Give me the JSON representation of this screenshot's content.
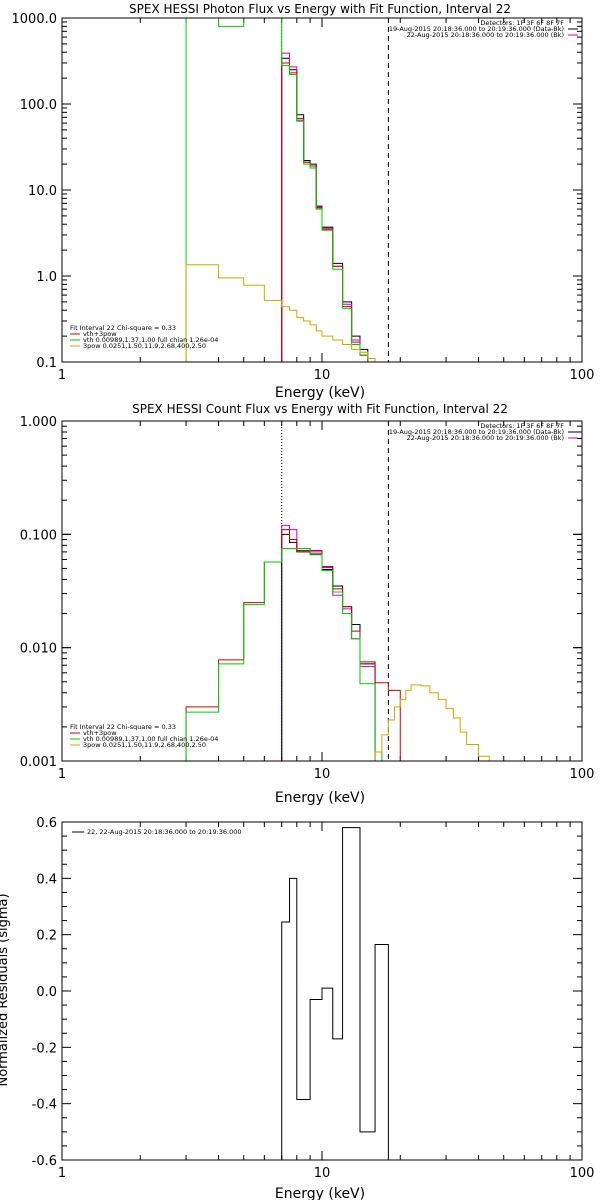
{
  "chart_data": [
    {
      "type": "line",
      "title": "SPEX HESSI Photon Flux vs Energy with Fit Function, Interval 22",
      "xlabel": "Energy (keV)",
      "ylabel": "",
      "xscale": "log",
      "yscale": "log",
      "xlim": [
        1,
        100
      ],
      "ylim": [
        0.1,
        1000
      ],
      "x_tick_labels": [
        "1",
        "10",
        "100"
      ],
      "y_tick_labels": [
        "0.1",
        "1.0",
        "10.0",
        "100.0",
        "1000.0"
      ],
      "top_legend": [
        "Detectors: 1F 3F 6F 8F 7F",
        "19-Aug-2015 20:18:36.000 to 20:19:36.000 (Data-Bk)",
        "22-Aug-2015 20:18:36.000 to 20:19:36.000 (Bk)"
      ],
      "top_legend_colors": [
        "#000000",
        "#000000",
        "#cc00cc"
      ],
      "fit_legend_header": "Fit Interval 22   Chi-square = 0.33",
      "fit_legend": [
        {
          "label": "vth+3pow",
          "color": "#cc0000"
        },
        {
          "label": "vth 0.00989,1.37,1.00  full chian 1.26e-04",
          "color": "#00cc00"
        },
        {
          "label": "3pow 0.0251,1.50,11.9,2.68,400,2.50",
          "color": "#ccaa00"
        }
      ],
      "vlines": [
        {
          "x": 7.0,
          "style": "dotted",
          "color": "#cc00cc"
        },
        {
          "x": 18.0,
          "style": "dashed",
          "color": "#000000"
        }
      ],
      "series": [
        {
          "color": "#000000",
          "steps": [
            [
              7.0,
              7.5,
              340
            ],
            [
              7.5,
              8.0,
              250
            ],
            [
              8.0,
              8.5,
              75
            ],
            [
              8.5,
              9.0,
              22
            ],
            [
              9.0,
              9.5,
              20
            ],
            [
              9.5,
              10.0,
              6.5
            ],
            [
              10.0,
              11.0,
              3.7
            ],
            [
              11.0,
              12.0,
              1.4
            ],
            [
              12.0,
              13.0,
              0.5
            ],
            [
              13.0,
              14.0,
              0.2
            ],
            [
              14.0,
              15.0,
              0.14
            ]
          ]
        },
        {
          "color": "#cc00cc",
          "steps": [
            [
              7.0,
              7.5,
              390
            ],
            [
              7.5,
              8.0,
              270
            ],
            [
              8.0,
              8.5,
              65
            ],
            [
              8.5,
              9.0,
              21
            ],
            [
              9.0,
              9.5,
              19
            ],
            [
              9.5,
              10.0,
              6.3
            ],
            [
              10.0,
              11.0,
              3.6
            ],
            [
              11.0,
              12.0,
              1.3
            ],
            [
              12.0,
              13.0,
              0.47
            ],
            [
              13.0,
              14.0,
              0.18
            ],
            [
              14.0,
              15.0,
              0.12
            ]
          ]
        },
        {
          "color": "#cc0000",
          "steps": [
            [
              7.0,
              7.5,
              300
            ],
            [
              7.5,
              8.0,
              230
            ],
            [
              8.0,
              8.5,
              68
            ],
            [
              8.5,
              9.0,
              21
            ],
            [
              9.0,
              9.5,
              19
            ],
            [
              9.5,
              10.0,
              6.2
            ],
            [
              10.0,
              11.0,
              3.5
            ],
            [
              11.0,
              12.0,
              1.3
            ],
            [
              12.0,
              13.0,
              0.44
            ],
            [
              13.0,
              14.0,
              0.17
            ],
            [
              14.0,
              15.0,
              0.12
            ]
          ]
        },
        {
          "color": "#00cc00",
          "steps": [
            [
              3.0,
              4.0,
              1000
            ],
            [
              4.0,
              5.0,
              800
            ],
            [
              5.0,
              6.0,
              1000
            ],
            [
              6.0,
              7.0,
              1000
            ],
            [
              7.0,
              7.5,
              280
            ],
            [
              7.5,
              8.0,
              220
            ],
            [
              8.0,
              8.5,
              63
            ],
            [
              8.5,
              9.0,
              20
            ],
            [
              9.0,
              9.5,
              18
            ],
            [
              9.5,
              10.0,
              6.0
            ],
            [
              10.0,
              11.0,
              3.4
            ],
            [
              11.0,
              12.0,
              1.2
            ],
            [
              12.0,
              13.0,
              0.42
            ],
            [
              13.0,
              14.0,
              0.16
            ],
            [
              14.0,
              15.0,
              0.12
            ]
          ]
        },
        {
          "color": "#ccaa00",
          "steps": [
            [
              3.0,
              4.0,
              1.35
            ],
            [
              4.0,
              5.0,
              0.95
            ],
            [
              5.0,
              6.0,
              0.78
            ],
            [
              6.0,
              7.0,
              0.52
            ],
            [
              7.0,
              7.5,
              0.44
            ],
            [
              7.5,
              8.0,
              0.4
            ],
            [
              8.0,
              8.5,
              0.33
            ],
            [
              8.5,
              9.0,
              0.3
            ],
            [
              9.0,
              9.5,
              0.27
            ],
            [
              9.5,
              10.0,
              0.23
            ],
            [
              10.0,
              11.0,
              0.2
            ],
            [
              11.0,
              12.0,
              0.18
            ],
            [
              12.0,
              13.0,
              0.16
            ],
            [
              13.0,
              14.0,
              0.14
            ],
            [
              14.0,
              15.0,
              0.13
            ],
            [
              15.0,
              16.0,
              0.11
            ]
          ]
        }
      ]
    },
    {
      "type": "line",
      "title": "SPEX HESSI Count Flux vs Energy with Fit Function, Interval 22",
      "xlabel": "Energy (keV)",
      "ylabel": "",
      "xscale": "log",
      "yscale": "log",
      "xlim": [
        1,
        100
      ],
      "ylim": [
        0.001,
        1.0
      ],
      "x_tick_labels": [
        "1",
        "10",
        "100"
      ],
      "y_tick_labels": [
        "0.001",
        "0.010",
        "0.100",
        "1.000"
      ],
      "top_legend": [
        "Detectors: 1F 3F 6F 8F 7F",
        "19-Aug-2015 20:18:36.000 to 20:19:36.000 (Data-Bk)",
        "22-Aug-2015 20:18:36.000 to 20:19:36.000 (Bk)"
      ],
      "top_legend_colors": [
        "#000000",
        "#000000",
        "#cc00cc"
      ],
      "fit_legend_header": "Fit Interval 22   Chi-square = 0.33",
      "fit_legend": [
        {
          "label": "vth+3pow",
          "color": "#cc0000"
        },
        {
          "label": "vth 0.00989,1.37,1.00  full chian 1.26e-04",
          "color": "#00cc00"
        },
        {
          "label": "3pow 0.0251,1.50,11.9,2.68,400,2.50",
          "color": "#ccaa00"
        }
      ],
      "vlines": [
        {
          "x": 7.0,
          "style": "dotted",
          "color": "#000000"
        },
        {
          "x": 18.0,
          "style": "dashed",
          "color": "#000000"
        }
      ],
      "series": [
        {
          "color": "#cc00cc",
          "steps": [
            [
              7.0,
              7.5,
              0.12
            ],
            [
              7.5,
              8.0,
              0.11
            ],
            [
              8.0,
              9.0,
              0.075
            ],
            [
              9.0,
              10.0,
              0.07
            ],
            [
              10.0,
              11.0,
              0.051
            ],
            [
              11.0,
              12.0,
              0.029
            ],
            [
              12.0,
              13.0,
              0.022
            ],
            [
              13.0,
              14.0,
              0.012
            ],
            [
              14.0,
              16.0,
              0.0068
            ]
          ]
        },
        {
          "color": "#000000",
          "steps": [
            [
              7.0,
              7.5,
              0.1
            ],
            [
              7.5,
              8.0,
              0.085
            ],
            [
              8.0,
              9.0,
              0.07
            ],
            [
              9.0,
              10.0,
              0.067
            ],
            [
              10.0,
              11.0,
              0.049
            ],
            [
              11.0,
              12.0,
              0.035
            ],
            [
              12.0,
              13.0,
              0.023
            ],
            [
              13.0,
              14.0,
              0.016
            ],
            [
              14.0,
              16.0,
              0.0072
            ]
          ]
        },
        {
          "color": "#cc0000",
          "steps": [
            [
              3.0,
              4.0,
              0.003
            ],
            [
              4.0,
              5.0,
              0.0078
            ],
            [
              5.0,
              6.0,
              0.025
            ],
            [
              6.0,
              7.0,
              0.057
            ],
            [
              7.0,
              7.5,
              0.11
            ],
            [
              7.5,
              8.0,
              0.09
            ],
            [
              8.0,
              9.0,
              0.072
            ],
            [
              9.0,
              10.0,
              0.072
            ],
            [
              10.0,
              11.0,
              0.052
            ],
            [
              11.0,
              12.0,
              0.033
            ],
            [
              12.0,
              13.0,
              0.023
            ],
            [
              13.0,
              14.0,
              0.014
            ],
            [
              14.0,
              16.0,
              0.0075
            ],
            [
              16.0,
              18.0,
              0.0049
            ],
            [
              18.0,
              20.0,
              0.0042
            ]
          ]
        },
        {
          "color": "#00cc00",
          "steps": [
            [
              3.0,
              4.0,
              0.0027
            ],
            [
              4.0,
              5.0,
              0.0072
            ],
            [
              5.0,
              6.0,
              0.024
            ],
            [
              6.0,
              7.0,
              0.057
            ],
            [
              7.0,
              8.0,
              0.075
            ],
            [
              8.0,
              9.0,
              0.075
            ],
            [
              9.0,
              10.0,
              0.066
            ],
            [
              10.0,
              11.0,
              0.048
            ],
            [
              11.0,
              12.0,
              0.031
            ],
            [
              12.0,
              13.0,
              0.02
            ],
            [
              13.0,
              14.0,
              0.012
            ],
            [
              14.0,
              16.0,
              0.0048
            ],
            [
              16.0,
              17.0,
              0.0012
            ]
          ]
        },
        {
          "color": "#ccaa00",
          "steps": [
            [
              16.0,
              17.0,
              0.0012
            ],
            [
              17.0,
              18.0,
              0.0017
            ],
            [
              18.0,
              19.0,
              0.0023
            ],
            [
              19.0,
              20.0,
              0.003
            ],
            [
              20.0,
              21.0,
              0.0035
            ],
            [
              21.0,
              22.0,
              0.0042
            ],
            [
              22.0,
              24.0,
              0.0047
            ],
            [
              24.0,
              26.0,
              0.0046
            ],
            [
              26.0,
              28.0,
              0.004
            ],
            [
              28.0,
              30.0,
              0.0035
            ],
            [
              30.0,
              32.0,
              0.0029
            ],
            [
              32.0,
              34.0,
              0.0024
            ],
            [
              34.0,
              36.0,
              0.0018
            ],
            [
              36.0,
              40.0,
              0.0014
            ],
            [
              40.0,
              44.0,
              0.0011
            ]
          ]
        }
      ]
    },
    {
      "type": "line",
      "title": "",
      "xlabel": "Energy (keV)",
      "ylabel": "Normalized Residuals (sigma)",
      "xscale": "log",
      "yscale": "linear",
      "xlim": [
        1,
        100
      ],
      "ylim": [
        -0.6,
        0.6
      ],
      "x_tick_labels": [
        "1",
        "10",
        "100"
      ],
      "y_tick_labels": [
        "-0.6",
        "-0.4",
        "-0.2",
        "0.0",
        "0.2",
        "0.4",
        "0.6"
      ],
      "legend": "22, 22-Aug-2015 20:18:36.000 to 20:19:36.000",
      "series": [
        {
          "color": "#000000",
          "steps": [
            [
              7.0,
              7.5,
              0.245
            ],
            [
              7.5,
              8.0,
              0.4
            ],
            [
              8.0,
              9.0,
              -0.385
            ],
            [
              9.0,
              10.0,
              -0.03
            ],
            [
              10.0,
              11.0,
              0.01
            ],
            [
              11.0,
              12.0,
              -0.17
            ],
            [
              12.0,
              14.0,
              0.58
            ],
            [
              14.0,
              16.0,
              -0.5
            ],
            [
              16.0,
              18.0,
              0.165
            ]
          ]
        }
      ]
    }
  ]
}
